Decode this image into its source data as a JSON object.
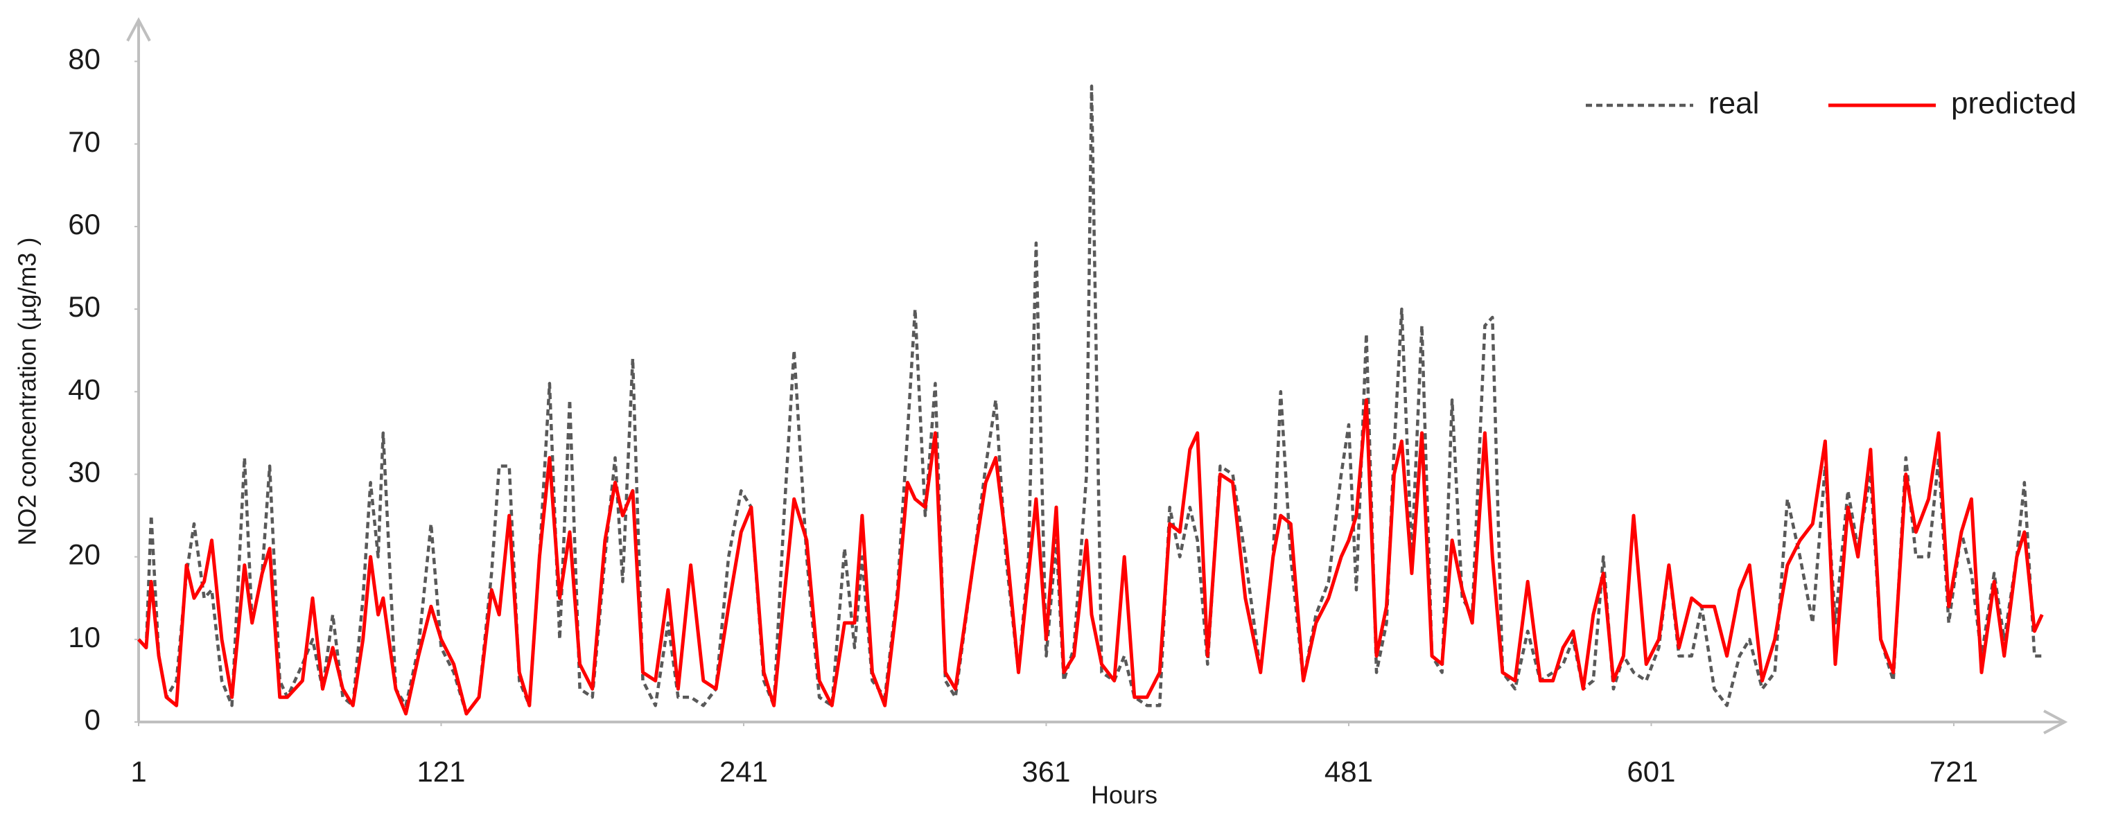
{
  "chart_data": {
    "type": "line",
    "x_label": "Hours",
    "y_label": "NO2 concentration (µg/m3 )",
    "x": [
      1,
      4,
      6,
      9,
      12,
      16,
      20,
      23,
      27,
      30,
      34,
      38,
      43,
      46,
      50,
      53,
      57,
      60,
      66,
      70,
      74,
      78,
      82,
      86,
      90,
      93,
      96,
      98,
      103,
      107,
      112,
      117,
      121,
      126,
      131,
      136,
      141,
      144,
      148,
      152,
      156,
      160,
      164,
      168,
      172,
      176,
      181,
      186,
      190,
      193,
      197,
      201,
      206,
      211,
      215,
      220,
      225,
      230,
      235,
      240,
      244,
      249,
      253,
      257,
      261,
      266,
      271,
      276,
      281,
      285,
      288,
      292,
      297,
      302,
      306,
      309,
      313,
      317,
      321,
      325,
      332,
      337,
      341,
      345,
      350,
      354,
      357,
      361,
      365,
      368,
      372,
      377,
      379,
      383,
      388,
      392,
      396,
      401,
      406,
      410,
      414,
      418,
      421,
      425,
      430,
      435,
      440,
      446,
      451,
      454,
      458,
      463,
      468,
      473,
      478,
      481,
      484,
      488,
      492,
      496,
      499,
      502,
      506,
      510,
      514,
      518,
      522,
      526,
      530,
      535,
      538,
      542,
      547,
      552,
      557,
      562,
      566,
      570,
      574,
      578,
      582,
      586,
      590,
      594,
      599,
      604,
      608,
      612,
      617,
      621,
      626,
      631,
      636,
      640,
      645,
      650,
      655,
      660,
      665,
      670,
      674,
      679,
      683,
      688,
      692,
      697,
      702,
      706,
      711,
      715,
      719,
      724,
      728,
      732,
      737,
      741,
      746,
      749,
      753,
      756
    ],
    "series": [
      {
        "name": "real",
        "color": "#595959",
        "dashed": true,
        "values": [
          10,
          9,
          25,
          8,
          3,
          5,
          18,
          24,
          15,
          16,
          5,
          2,
          32,
          12,
          18,
          31,
          5,
          3,
          7,
          10,
          4,
          13,
          3,
          2,
          15,
          29,
          20,
          35,
          4,
          2,
          9,
          24,
          9,
          6,
          1,
          3,
          18,
          31,
          31,
          5,
          2,
          20,
          41,
          10,
          39,
          4,
          3,
          20,
          32,
          17,
          44,
          5,
          2,
          12,
          3,
          3,
          2,
          4,
          20,
          28,
          26,
          5,
          2,
          25,
          45,
          20,
          3,
          2,
          21,
          9,
          20,
          5,
          3,
          16,
          35,
          50,
          25,
          41,
          5,
          3,
          19,
          31,
          39,
          20,
          6,
          20,
          58,
          8,
          22,
          5,
          9,
          30,
          77,
          6,
          5,
          8,
          3,
          2,
          2,
          26,
          20,
          26,
          22,
          7,
          31,
          30,
          20,
          6,
          20,
          40,
          20,
          5,
          13,
          17,
          30,
          36,
          16,
          47,
          6,
          12,
          33,
          50,
          20,
          48,
          8,
          6,
          39,
          15,
          13,
          48,
          49,
          6,
          4,
          11,
          5,
          6,
          7,
          10,
          4,
          5,
          20,
          4,
          8,
          6,
          5,
          9,
          19,
          8,
          8,
          14,
          4,
          2,
          8,
          10,
          4,
          6,
          27,
          20,
          12,
          31,
          12,
          28,
          21,
          30,
          10,
          5,
          32,
          20,
          20,
          32,
          12,
          23,
          18,
          8,
          18,
          10,
          20,
          29,
          8,
          8
        ]
      },
      {
        "name": "predicted",
        "color": "#ff0000",
        "dashed": false,
        "values": [
          10,
          9,
          17,
          8,
          3,
          2,
          19,
          15,
          17,
          22,
          10,
          3,
          19,
          12,
          18,
          21,
          3,
          3,
          5,
          15,
          4,
          9,
          4,
          2,
          10,
          20,
          13,
          15,
          4,
          1,
          8,
          14,
          10,
          7,
          1,
          3,
          16,
          13,
          25,
          6,
          2,
          20,
          32,
          15,
          23,
          7,
          4,
          22,
          29,
          25,
          28,
          6,
          5,
          16,
          4,
          19,
          5,
          4,
          14,
          23,
          26,
          6,
          2,
          15,
          27,
          22,
          5,
          2,
          12,
          12,
          25,
          6,
          2,
          15,
          29,
          27,
          26,
          35,
          6,
          4,
          19,
          29,
          32,
          22,
          6,
          18,
          27,
          10,
          26,
          6,
          8,
          22,
          13,
          7,
          5,
          20,
          3,
          3,
          6,
          24,
          23,
          33,
          35,
          8,
          30,
          29,
          15,
          6,
          20,
          25,
          24,
          5,
          12,
          15,
          20,
          22,
          25,
          39,
          8,
          14,
          30,
          34,
          18,
          35,
          8,
          7,
          22,
          16,
          12,
          35,
          20,
          6,
          5,
          17,
          5,
          5,
          9,
          11,
          4,
          13,
          18,
          5,
          8,
          25,
          7,
          10,
          19,
          9,
          15,
          14,
          14,
          8,
          16,
          19,
          5,
          10,
          19,
          22,
          24,
          34,
          7,
          26,
          20,
          33,
          10,
          6,
          30,
          23,
          27,
          35,
          14,
          23,
          27,
          6,
          17,
          8,
          20,
          23,
          11,
          13
        ]
      }
    ],
    "xlim": [
      1,
      765
    ],
    "xticks": [
      1,
      121,
      241,
      361,
      481,
      601,
      721
    ],
    "ylim": [
      0,
      85
    ],
    "yticks": [
      0,
      10,
      20,
      30,
      40,
      50,
      60,
      70,
      80
    ],
    "grid": false,
    "legend": "upper right"
  }
}
